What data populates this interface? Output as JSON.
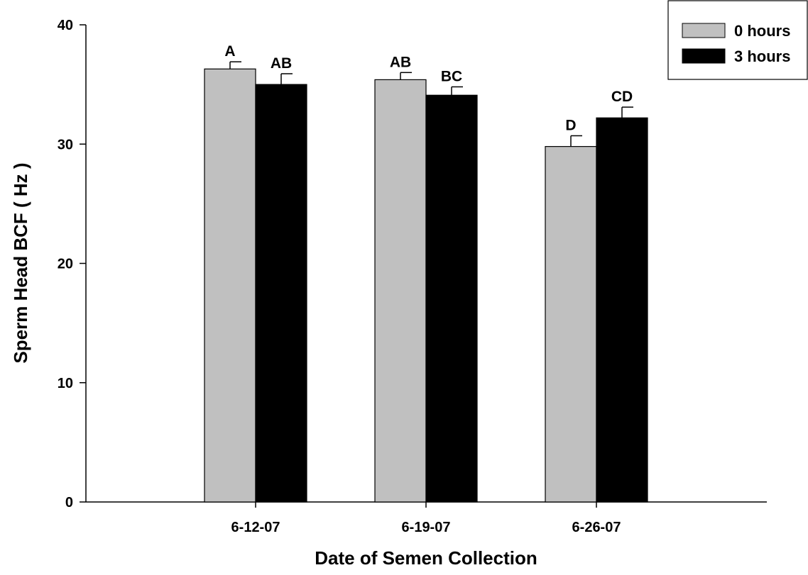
{
  "chart_data": {
    "type": "bar",
    "title": "",
    "xlabel": "Date of Semen Collection",
    "ylabel": "Sperm Head BCF ( Hz )",
    "ylim": [
      0,
      40
    ],
    "yticks": [
      0,
      10,
      20,
      30,
      40
    ],
    "categories": [
      "6-12-07",
      "6-19-07",
      "6-26-07"
    ],
    "series": [
      {
        "name": "0 hours",
        "color": "#c0c0c0",
        "values": [
          36.3,
          35.4,
          29.8
        ],
        "errors": [
          0.6,
          0.6,
          0.9
        ],
        "letters": [
          "A",
          "AB",
          "D"
        ]
      },
      {
        "name": "3 hours",
        "color": "#000000",
        "values": [
          35.0,
          34.1,
          32.2
        ],
        "errors": [
          0.9,
          0.7,
          0.9
        ],
        "letters": [
          "AB",
          "BC",
          "CD"
        ]
      }
    ],
    "legend_position": "top-right",
    "grid": false
  }
}
